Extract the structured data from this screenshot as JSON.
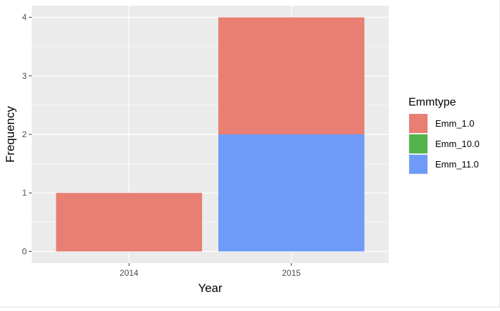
{
  "chart_data": {
    "type": "bar",
    "stacked": true,
    "xlabel": "Year",
    "ylabel": "Frequency",
    "categories": [
      "2014",
      "2015"
    ],
    "ylim": [
      0,
      4
    ],
    "yticks": [
      0,
      1,
      2,
      3,
      4
    ],
    "grid": true,
    "legend": {
      "title": "Emmtype",
      "position": "right"
    },
    "series": [
      {
        "name": "Emm_1.0",
        "color": "#E87F72",
        "values": [
          1,
          2
        ]
      },
      {
        "name": "Emm_10.0",
        "color": "#53B34B",
        "values": [
          0,
          0
        ]
      },
      {
        "name": "Emm_11.0",
        "color": "#6F9BF8",
        "values": [
          0,
          2
        ]
      }
    ],
    "stack_order": [
      "Emm_11.0",
      "Emm_10.0",
      "Emm_1.0"
    ]
  }
}
